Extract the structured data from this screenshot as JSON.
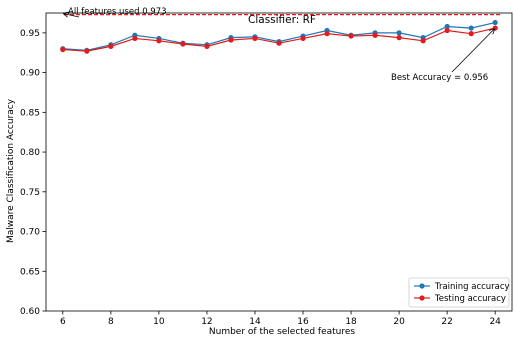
{
  "chart_data": {
    "type": "line",
    "title": "Classifier: RF",
    "xlabel": "Number of the selected features",
    "ylabel": "Malware Classification Accuracy",
    "xlim": [
      5.3,
      24.7
    ],
    "ylim": [
      0.6,
      0.975
    ],
    "xticks": [
      6,
      8,
      10,
      12,
      14,
      16,
      18,
      20,
      22,
      24
    ],
    "xtick_labels": [
      "6",
      "8",
      "10",
      "12",
      "14",
      "16",
      "18",
      "20",
      "22",
      "24"
    ],
    "yticks": [
      0.6,
      0.65,
      0.7,
      0.75,
      0.8,
      0.85,
      0.9,
      0.95
    ],
    "ytick_labels": [
      "0.60",
      "0.65",
      "0.70",
      "0.75",
      "0.80",
      "0.85",
      "0.90",
      "0.95"
    ],
    "x": [
      6,
      7,
      8,
      9,
      10,
      11,
      12,
      13,
      14,
      15,
      16,
      17,
      18,
      19,
      20,
      21,
      22,
      23,
      24
    ],
    "series": [
      {
        "name": "Training accuracy",
        "color": "#1f77b4",
        "values": [
          0.93,
          0.928,
          0.935,
          0.947,
          0.943,
          0.937,
          0.935,
          0.944,
          0.945,
          0.939,
          0.946,
          0.953,
          0.947,
          0.95,
          0.95,
          0.944,
          0.958,
          0.956,
          0.963
        ]
      },
      {
        "name": "Testing accuracy",
        "color": "#e41a1c",
        "values": [
          0.929,
          0.927,
          0.933,
          0.943,
          0.94,
          0.936,
          0.933,
          0.941,
          0.943,
          0.937,
          0.943,
          0.949,
          0.946,
          0.947,
          0.944,
          0.94,
          0.953,
          0.949,
          0.956
        ]
      }
    ],
    "reference_line": {
      "value": 0.973,
      "color": "#e41a1c",
      "style": "dashed"
    },
    "annotations": [
      {
        "text": "All features used 0.973",
        "target_x": 6,
        "target_y": 0.973
      },
      {
        "text": "Best Accuracy = 0.956",
        "target_x": 24,
        "target_y": 0.956
      }
    ],
    "legend_placement": "bottom-right",
    "grid": false
  }
}
